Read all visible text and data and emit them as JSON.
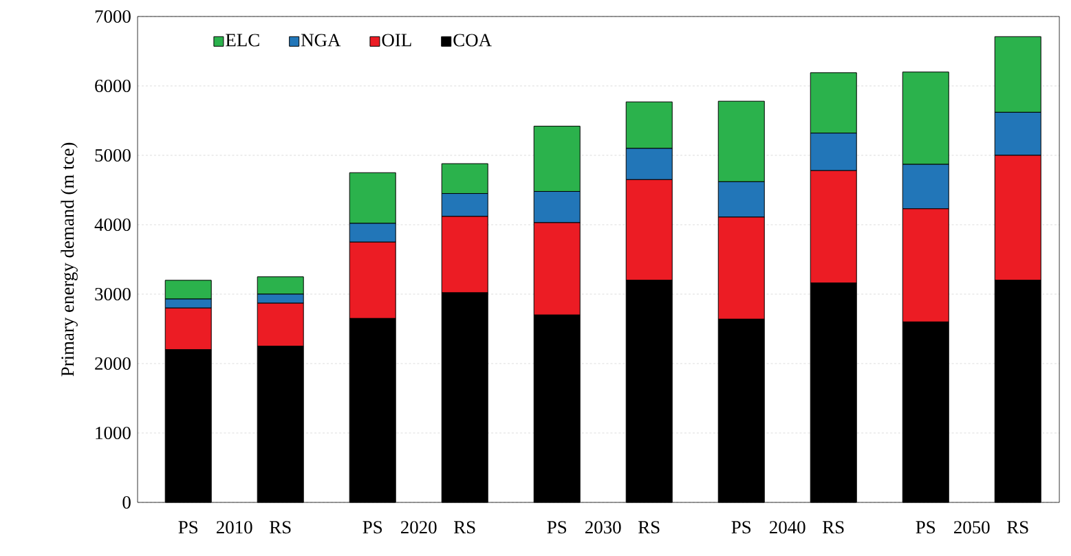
{
  "chart_data": {
    "type": "bar",
    "stacked": true,
    "ylabel": "Primary energy demand (m tce)",
    "categories": [
      "PS",
      "RS",
      "PS",
      "RS",
      "PS",
      "RS",
      "PS",
      "RS",
      "PS",
      "RS"
    ],
    "annotations": [
      "2010",
      "2020",
      "2030",
      "2040",
      "2050"
    ],
    "series": [
      {
        "name": "COA",
        "color": "#000000",
        "values": [
          2200,
          2250,
          2650,
          3020,
          2700,
          3200,
          2640,
          3160,
          2600,
          3200
        ]
      },
      {
        "name": "OIL",
        "color": "#ec1c24",
        "values": [
          600,
          620,
          1100,
          1100,
          1330,
          1450,
          1470,
          1620,
          1630,
          1800
        ]
      },
      {
        "name": "NGA",
        "color": "#2276b8",
        "values": [
          130,
          130,
          270,
          330,
          450,
          450,
          510,
          540,
          640,
          620
        ]
      },
      {
        "name": "ELC",
        "color": "#2bb24c",
        "values": [
          270,
          250,
          730,
          430,
          940,
          670,
          1160,
          870,
          1330,
          1090
        ]
      }
    ],
    "ylim": [
      0,
      7000
    ],
    "yticks": [
      0,
      1000,
      2000,
      3000,
      4000,
      5000,
      6000,
      7000
    ],
    "grid": "y",
    "legend": "top left"
  }
}
